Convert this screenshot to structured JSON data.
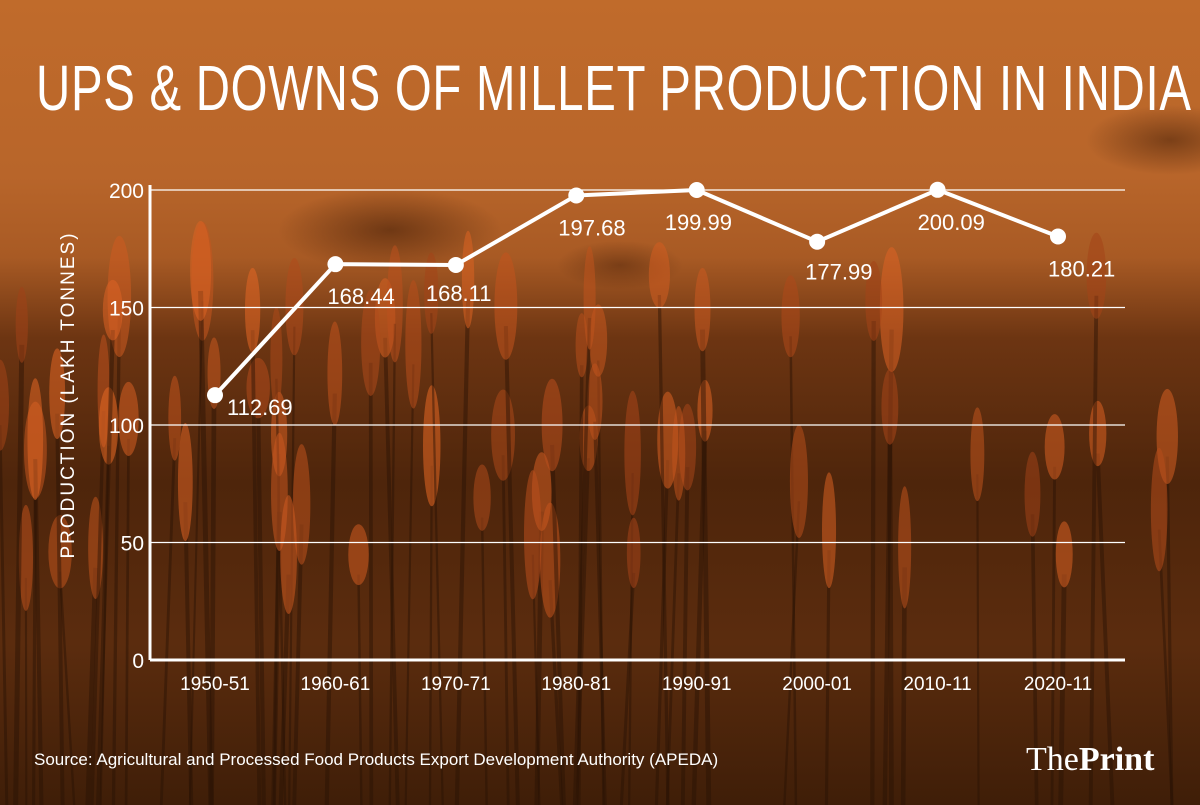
{
  "title": "UPS & DOWNS OF MILLET PRODUCTION IN INDIA",
  "source": "Source: Agricultural and Processed Food Products Export Development Authority (APEDA)",
  "logo": {
    "part1": "The",
    "part2": "Print"
  },
  "colors": {
    "line": "#ffffff",
    "text": "#ffffff",
    "background": "#a85a24"
  },
  "chart_data": {
    "type": "line",
    "title": "UPS & DOWNS OF MILLET PRODUCTION IN INDIA",
    "xlabel": "",
    "ylabel": "PRODUCTION (LAKH TONNES)",
    "categories": [
      "1950-51",
      "1960-61",
      "1970-71",
      "1980-81",
      "1990-91",
      "2000-01",
      "2010-11",
      "2020-11"
    ],
    "values": [
      112.69,
      168.44,
      168.11,
      197.68,
      199.99,
      177.99,
      200.09,
      180.21
    ],
    "data_labels": [
      "112.69",
      "168.44",
      "168.11",
      "197.68",
      "199.99",
      "177.99",
      "200.09",
      "180.21"
    ],
    "ylim": [
      0,
      200
    ],
    "yticks": [
      0,
      50,
      100,
      150,
      200
    ],
    "grid": true,
    "legend": "none"
  }
}
